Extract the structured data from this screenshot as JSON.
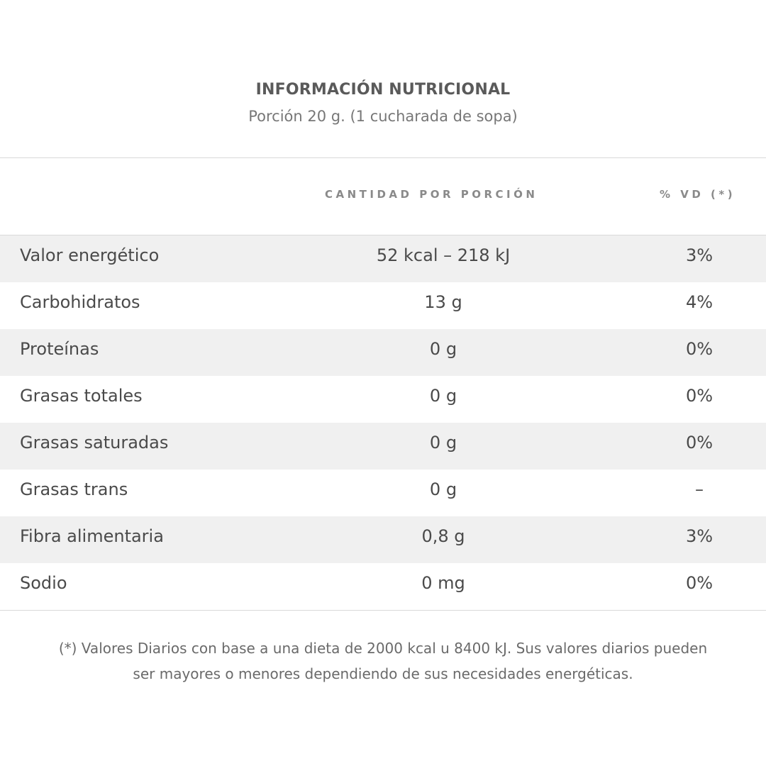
{
  "title": "INFORMACIÓN NUTRICIONAL",
  "subtitle": "Porción 20 g. (1 cucharada de sopa)",
  "columns": {
    "amount": "CANTIDAD POR PORCIÓN",
    "vd": "% VD (*)"
  },
  "rows": [
    {
      "name": "Valor energético",
      "amount": "52 kcal – 218 kJ",
      "vd": "3%"
    },
    {
      "name": "Carbohidratos",
      "amount": "13 g",
      "vd": "4%"
    },
    {
      "name": "Proteínas",
      "amount": "0 g",
      "vd": "0%"
    },
    {
      "name": "Grasas totales",
      "amount": "0 g",
      "vd": "0%"
    },
    {
      "name": "Grasas saturadas",
      "amount": "0 g",
      "vd": "0%"
    },
    {
      "name": "Grasas trans",
      "amount": "0 g",
      "vd": "–"
    },
    {
      "name": "Fibra alimentaria",
      "amount": "0,8 g",
      "vd": "3%"
    },
    {
      "name": "Sodio",
      "amount": "0 mg",
      "vd": "0%"
    }
  ],
  "footnote": {
    "line1": "(*) Valores Diarios con base a una dieta de 2000 kcal u 8400 kJ. Sus valores diarios pueden",
    "line2": "ser mayores o menores dependiendo de sus necesidades energéticas."
  },
  "colors": {
    "shaded_row": "#f0f0f0",
    "divider": "#d9d9d9",
    "text": "#4a4a4a"
  }
}
